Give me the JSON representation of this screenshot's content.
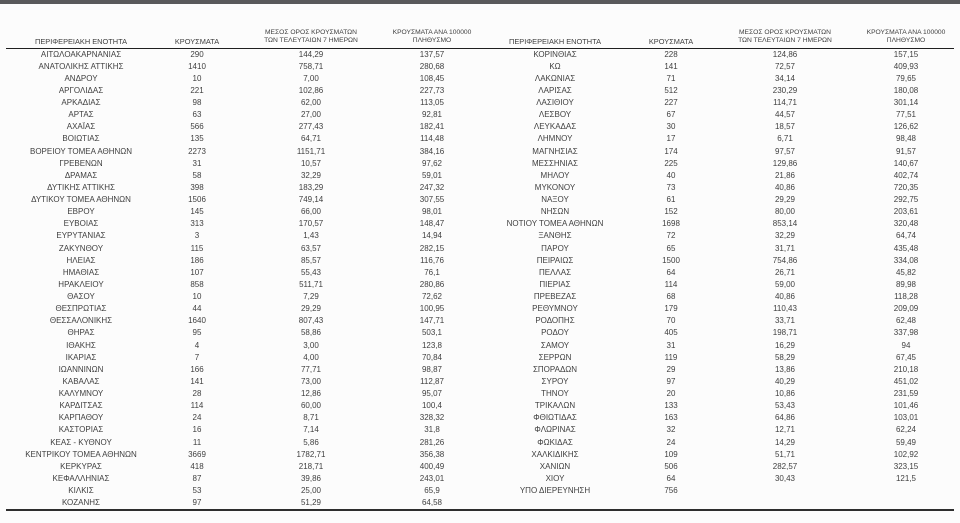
{
  "report": {
    "language": "el",
    "description_headers": {
      "region": "ΠΕΡΙΦΕΡΕΙΑΚΗ ΕΝΟΤΗΤΑ",
      "cases": "ΚΡΟΥΣΜΑΤΑ",
      "avg7_line1": "ΜΕΣΟΣ ΟΡΟΣ ΚΡΟΥΣΜΑΤΩΝ",
      "avg7_line2": "ΤΩΝ ΤΕΛΕΥΤΑΙΩΝ 7 ΗΜΕΡΩΝ",
      "per100k_line1": "ΚΡΟΥΣΜΑΤΑ ΑΝΑ 100000",
      "per100k_line2": "ΠΛΗΘΥΣΜΟ"
    },
    "colors": {
      "top_bar": "#59595b",
      "text": "#3f3f3f",
      "rule": "#1f1f1f",
      "background": "#fcfcfc"
    },
    "left_rows": [
      [
        "ΑΙΤΩΛΟΑΚΑΡΝΑΝΙΑΣ",
        "290",
        "144,29",
        "137,57"
      ],
      [
        "ΑΝΑΤΟΛΙΚΗΣ ΑΤΤΙΚΗΣ",
        "1410",
        "758,71",
        "280,68"
      ],
      [
        "ΑΝΔΡΟΥ",
        "10",
        "7,00",
        "108,45"
      ],
      [
        "ΑΡΓΟΛΙΔΑΣ",
        "221",
        "102,86",
        "227,73"
      ],
      [
        "ΑΡΚΑΔΙΑΣ",
        "98",
        "62,00",
        "113,05"
      ],
      [
        "ΑΡΤΑΣ",
        "63",
        "27,00",
        "92,81"
      ],
      [
        "ΑΧΑΪΑΣ",
        "566",
        "277,43",
        "182,41"
      ],
      [
        "ΒΟΙΩΤΙΑΣ",
        "135",
        "64,71",
        "114,48"
      ],
      [
        "ΒΟΡΕΙΟΥ ΤΟΜΕΑ ΑΘΗΝΩΝ",
        "2273",
        "1151,71",
        "384,16"
      ],
      [
        "ΓΡΕΒΕΝΩΝ",
        "31",
        "10,57",
        "97,62"
      ],
      [
        "ΔΡΑΜΑΣ",
        "58",
        "32,29",
        "59,01"
      ],
      [
        "ΔΥΤΙΚΗΣ ΑΤΤΙΚΗΣ",
        "398",
        "183,29",
        "247,32"
      ],
      [
        "ΔΥΤΙΚΟΥ ΤΟΜΕΑ ΑΘΗΝΩΝ",
        "1506",
        "749,14",
        "307,55"
      ],
      [
        "ΕΒΡΟΥ",
        "145",
        "66,00",
        "98,01"
      ],
      [
        "ΕΥΒΟΙΑΣ",
        "313",
        "170,57",
        "148,47"
      ],
      [
        "ΕΥΡΥΤΑΝΙΑΣ",
        "3",
        "1,43",
        "14,94"
      ],
      [
        "ΖΑΚΥΝΘΟΥ",
        "115",
        "63,57",
        "282,15"
      ],
      [
        "ΗΛΕΙΑΣ",
        "186",
        "85,57",
        "116,76"
      ],
      [
        "ΗΜΑΘΙΑΣ",
        "107",
        "55,43",
        "76,1"
      ],
      [
        "ΗΡΑΚΛΕΙΟΥ",
        "858",
        "511,71",
        "280,86"
      ],
      [
        "ΘΑΣΟΥ",
        "10",
        "7,29",
        "72,62"
      ],
      [
        "ΘΕΣΠΡΩΤΙΑΣ",
        "44",
        "29,29",
        "100,95"
      ],
      [
        "ΘΕΣΣΑΛΟΝΙΚΗΣ",
        "1640",
        "807,43",
        "147,71"
      ],
      [
        "ΘΗΡΑΣ",
        "95",
        "58,86",
        "503,1"
      ],
      [
        "ΙΘΑΚΗΣ",
        "4",
        "3,00",
        "123,8"
      ],
      [
        "ΙΚΑΡΙΑΣ",
        "7",
        "4,00",
        "70,84"
      ],
      [
        "ΙΩΑΝΝΙΝΩΝ",
        "166",
        "77,71",
        "98,87"
      ],
      [
        "ΚΑΒΑΛΑΣ",
        "141",
        "73,00",
        "112,87"
      ],
      [
        "ΚΑΛΥΜΝΟΥ",
        "28",
        "12,86",
        "95,07"
      ],
      [
        "ΚΑΡΔΙΤΣΑΣ",
        "114",
        "60,00",
        "100,4"
      ],
      [
        "ΚΑΡΠΑΘΟΥ",
        "24",
        "8,71",
        "328,32"
      ],
      [
        "ΚΑΣΤΟΡΙΑΣ",
        "16",
        "7,14",
        "31,8"
      ],
      [
        "ΚΕΑΣ - ΚΥΘΝΟΥ",
        "11",
        "5,86",
        "281,26"
      ],
      [
        "ΚΕΝΤΡΙΚΟΥ ΤΟΜΕΑ ΑΘΗΝΩΝ",
        "3669",
        "1782,71",
        "356,38"
      ],
      [
        "ΚΕΡΚΥΡΑΣ",
        "418",
        "218,71",
        "400,49"
      ],
      [
        "ΚΕΦΑΛΛΗΝΙΑΣ",
        "87",
        "39,86",
        "243,01"
      ],
      [
        "ΚΙΛΚΙΣ",
        "53",
        "25,00",
        "65,9"
      ],
      [
        "ΚΟΖΑΝΗΣ",
        "97",
        "51,29",
        "64,58"
      ]
    ],
    "right_rows": [
      [
        "ΚΟΡΙΝΘΙΑΣ",
        "228",
        "124,86",
        "157,15"
      ],
      [
        "ΚΩ",
        "141",
        "72,57",
        "409,93"
      ],
      [
        "ΛΑΚΩΝΙΑΣ",
        "71",
        "34,14",
        "79,65"
      ],
      [
        "ΛΑΡΙΣΑΣ",
        "512",
        "230,29",
        "180,08"
      ],
      [
        "ΛΑΣΙΘΙΟΥ",
        "227",
        "114,71",
        "301,14"
      ],
      [
        "ΛΕΣΒΟΥ",
        "67",
        "44,57",
        "77,51"
      ],
      [
        "ΛΕΥΚΑΔΑΣ",
        "30",
        "18,57",
        "126,62"
      ],
      [
        "ΛΗΜΝΟΥ",
        "17",
        "6,71",
        "98,48"
      ],
      [
        "ΜΑΓΝΗΣΙΑΣ",
        "174",
        "97,57",
        "91,57"
      ],
      [
        "ΜΕΣΣΗΝΙΑΣ",
        "225",
        "129,86",
        "140,67"
      ],
      [
        "ΜΗΛΟΥ",
        "40",
        "21,86",
        "402,74"
      ],
      [
        "ΜΥΚΟΝΟΥ",
        "73",
        "40,86",
        "720,35"
      ],
      [
        "ΝΑΞΟΥ",
        "61",
        "29,29",
        "292,75"
      ],
      [
        "ΝΗΣΩΝ",
        "152",
        "80,00",
        "203,61"
      ],
      [
        "ΝΟΤΙΟΥ ΤΟΜΕΑ ΑΘΗΝΩΝ",
        "1698",
        "853,14",
        "320,48"
      ],
      [
        "ΞΑΝΘΗΣ",
        "72",
        "32,29",
        "64,74"
      ],
      [
        "ΠΑΡΟΥ",
        "65",
        "31,71",
        "435,48"
      ],
      [
        "ΠΕΙΡΑΙΩΣ",
        "1500",
        "754,86",
        "334,08"
      ],
      [
        "ΠΕΛΛΑΣ",
        "64",
        "26,71",
        "45,82"
      ],
      [
        "ΠΙΕΡΙΑΣ",
        "114",
        "59,00",
        "89,98"
      ],
      [
        "ΠΡΕΒΕΖΑΣ",
        "68",
        "40,86",
        "118,28"
      ],
      [
        "ΡΕΘΥΜΝΟΥ",
        "179",
        "110,43",
        "209,09"
      ],
      [
        "ΡΟΔΟΠΗΣ",
        "70",
        "33,71",
        "62,48"
      ],
      [
        "ΡΟΔΟΥ",
        "405",
        "198,71",
        "337,98"
      ],
      [
        "ΣΑΜΟΥ",
        "31",
        "16,29",
        "94"
      ],
      [
        "ΣΕΡΡΩΝ",
        "119",
        "58,29",
        "67,45"
      ],
      [
        "ΣΠΟΡΑΔΩΝ",
        "29",
        "13,86",
        "210,18"
      ],
      [
        "ΣΥΡΟΥ",
        "97",
        "40,29",
        "451,02"
      ],
      [
        "ΤΗΝΟΥ",
        "20",
        "10,86",
        "231,59"
      ],
      [
        "ΤΡΙΚΑΛΩΝ",
        "133",
        "53,43",
        "101,46"
      ],
      [
        "ΦΘΙΩΤΙΔΑΣ",
        "163",
        "64,86",
        "103,01"
      ],
      [
        "ΦΛΩΡΙΝΑΣ",
        "32",
        "12,71",
        "62,24"
      ],
      [
        "ΦΩΚΙΔΑΣ",
        "24",
        "14,29",
        "59,49"
      ],
      [
        "ΧΑΛΚΙΔΙΚΗΣ",
        "109",
        "51,71",
        "102,92"
      ],
      [
        "ΧΑΝΙΩΝ",
        "506",
        "282,57",
        "323,15"
      ],
      [
        "ΧΙΟΥ",
        "64",
        "30,43",
        "121,5"
      ],
      [
        "ΥΠΟ ΔΙΕΡΕΥΝΗΣΗ",
        "756",
        "",
        ""
      ]
    ]
  }
}
